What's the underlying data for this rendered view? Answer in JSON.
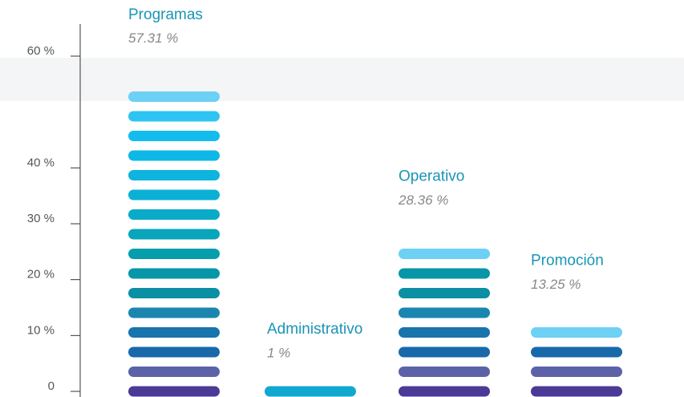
{
  "chart_data": {
    "type": "bar",
    "categories": [
      "Programas",
      "Administrativo",
      "Operativo",
      "Promoción"
    ],
    "values": [
      57.31,
      1,
      28.36,
      13.25
    ],
    "value_labels": [
      "57.31 %",
      "1 %",
      "28.36 %",
      "13.25 %"
    ],
    "ylim": [
      0,
      60
    ],
    "yticks": [
      0,
      {
        "value": 10,
        "label": "10 %"
      },
      {
        "value": 20,
        "label": "20 %"
      },
      {
        "value": 30,
        "label": "30 %"
      },
      {
        "value": 40,
        "label": "40 %"
      },
      {
        "value": 60,
        "label": "60 %"
      }
    ]
  }
}
